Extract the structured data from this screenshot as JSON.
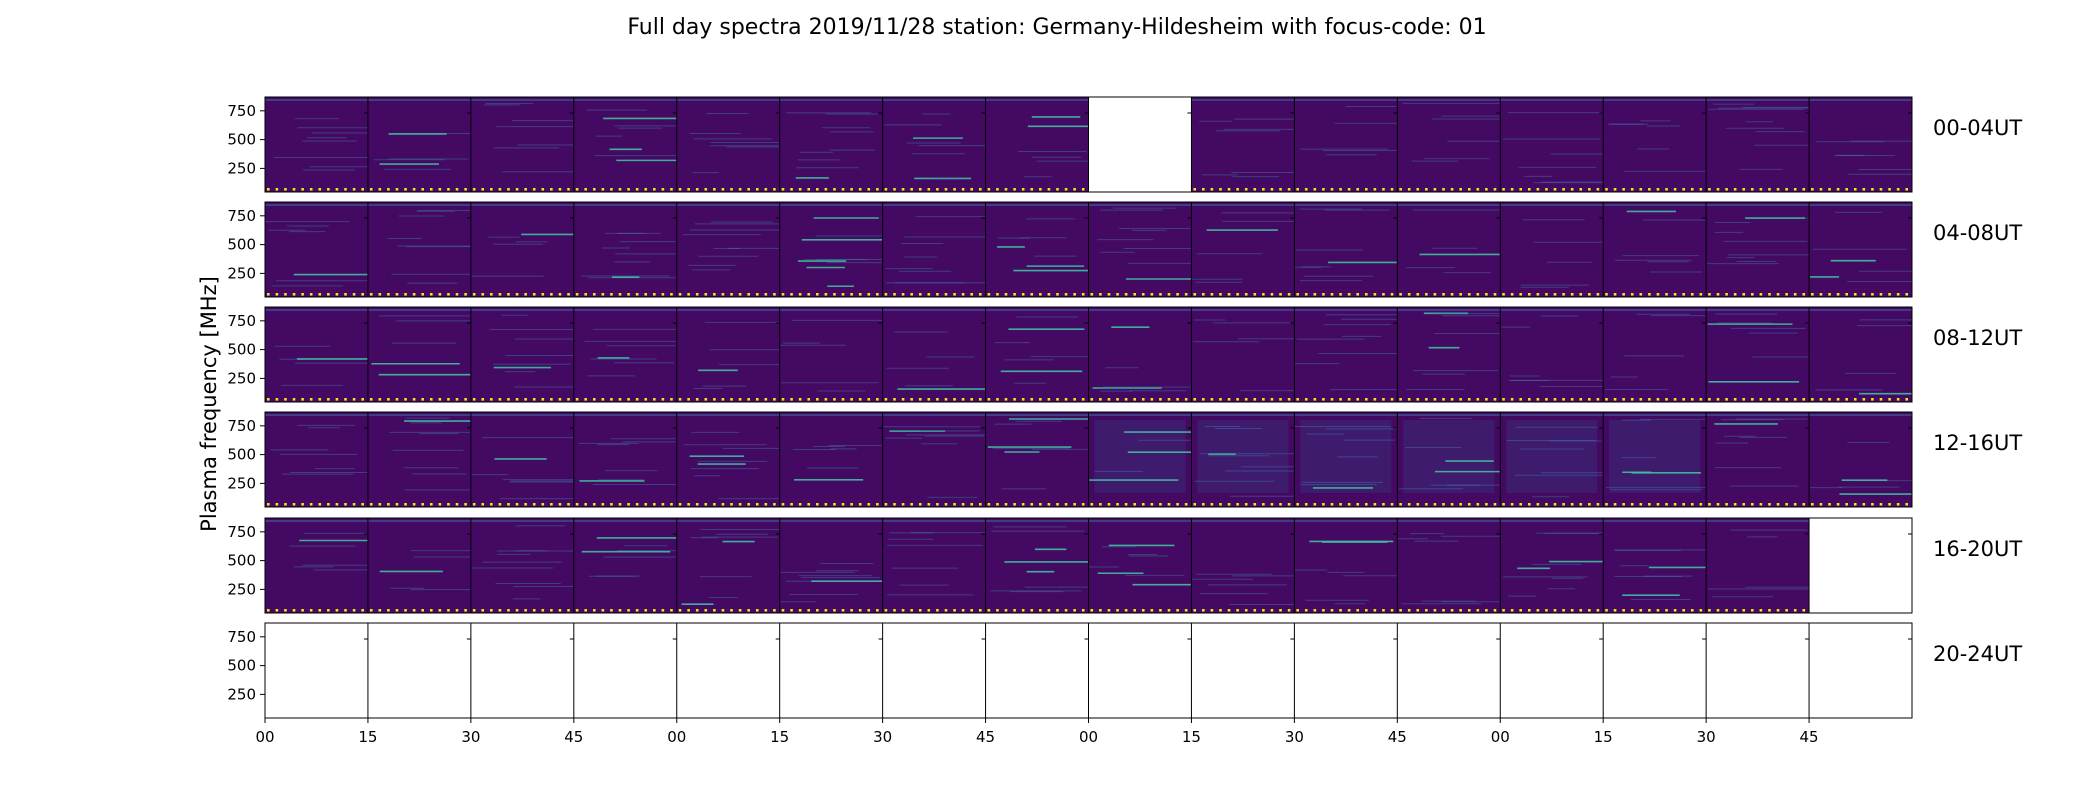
{
  "chart_data": {
    "type": "heatmap",
    "title": "Full day spectra 2019/11/28 station: Germany-Hildesheim with focus-code: 01",
    "ylabel": "Plasma frequency [MHz]",
    "yticks": [
      250,
      500,
      750
    ],
    "ylim": [
      45,
      870
    ],
    "minutes_per_panel": 15,
    "panels_per_row": 16,
    "xtick_labels": [
      "00",
      "15",
      "30",
      "45",
      "00",
      "15",
      "30",
      "45",
      "00",
      "15",
      "30",
      "45",
      "00",
      "15",
      "30",
      "45"
    ],
    "rows": [
      {
        "label": "00-04UT",
        "has_data": [
          true,
          true,
          true,
          true,
          true,
          true,
          true,
          true,
          false,
          true,
          true,
          true,
          true,
          true,
          true,
          true
        ]
      },
      {
        "label": "04-08UT",
        "has_data": [
          true,
          true,
          true,
          true,
          true,
          true,
          true,
          true,
          true,
          true,
          true,
          true,
          true,
          true,
          true,
          true
        ]
      },
      {
        "label": "08-12UT",
        "has_data": [
          true,
          true,
          true,
          true,
          true,
          true,
          true,
          true,
          true,
          true,
          true,
          true,
          true,
          true,
          true,
          true
        ]
      },
      {
        "label": "12-16UT",
        "has_data": [
          true,
          true,
          true,
          true,
          true,
          true,
          true,
          true,
          true,
          true,
          true,
          true,
          true,
          true,
          true,
          true
        ]
      },
      {
        "label": "16-20UT",
        "has_data": [
          true,
          true,
          true,
          true,
          true,
          true,
          true,
          true,
          true,
          true,
          true,
          true,
          true,
          true,
          true,
          false
        ]
      },
      {
        "label": "20-24UT",
        "has_data": [
          false,
          false,
          false,
          false,
          false,
          false,
          false,
          false,
          false,
          false,
          false,
          false,
          false,
          false,
          false,
          false
        ]
      }
    ],
    "colors": {
      "background": "#440a63",
      "line_light": "#3e7bb0",
      "line_bright": "#3fbf9f",
      "marker": "#f1e51d",
      "disturbed": "#3d2a78"
    }
  }
}
